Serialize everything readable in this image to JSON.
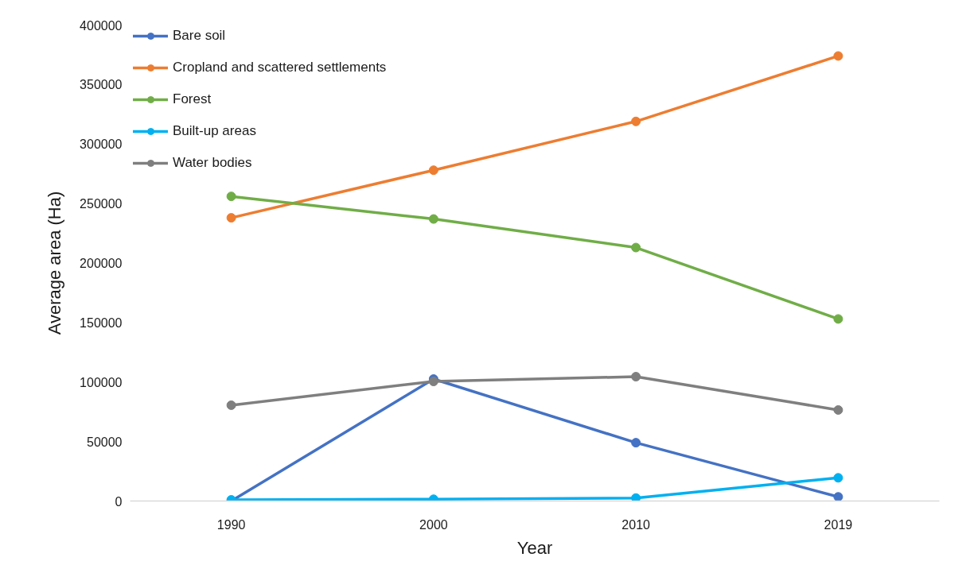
{
  "chart_data": {
    "type": "line",
    "xlabel": "Year",
    "ylabel": "Average area (Ha)",
    "categories": [
      "1990",
      "2000",
      "2010",
      "2019"
    ],
    "series": [
      {
        "name": "Bare soil",
        "color": "#4472c4",
        "values": [
          0,
          102500,
          49000,
          3500
        ]
      },
      {
        "name": "Cropland and scattered settlements",
        "color": "#ed7d31",
        "values": [
          238000,
          278000,
          319000,
          374000
        ]
      },
      {
        "name": "Forest",
        "color": "#70ad47",
        "values": [
          256000,
          237000,
          213000,
          153000
        ]
      },
      {
        "name": "Built-up areas",
        "color": "#00b0f0",
        "values": [
          1000,
          1500,
          2500,
          19500
        ]
      },
      {
        "name": "Water bodies",
        "color": "#7f7f7f",
        "values": [
          80500,
          100500,
          104500,
          76500
        ]
      }
    ],
    "ylim": [
      0,
      400000
    ],
    "yticks": [
      0,
      50000,
      100000,
      150000,
      200000,
      250000,
      300000,
      350000,
      400000
    ],
    "grid": false,
    "legend": "top left",
    "marker": "circle",
    "line_style": "solid"
  }
}
